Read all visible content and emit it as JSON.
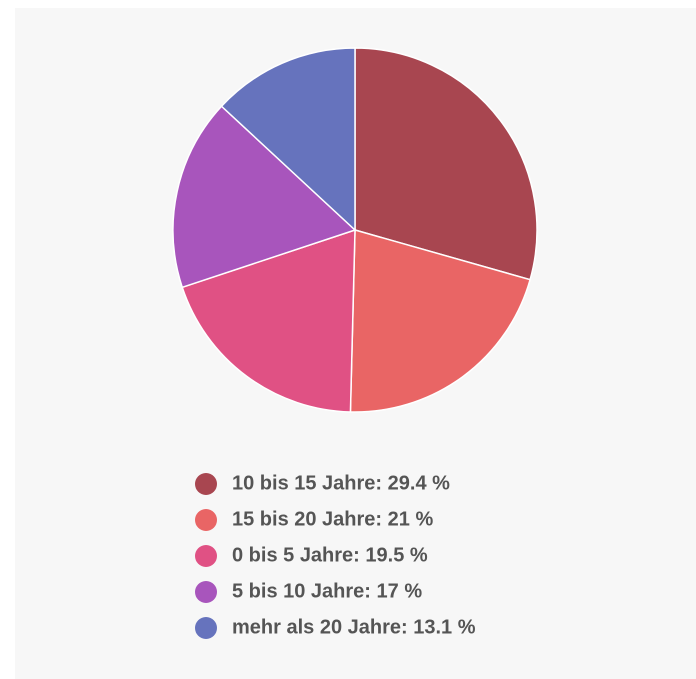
{
  "chart_data": {
    "type": "pie",
    "categories": [
      "10 bis 15 Jahre: 29.4 %",
      "15 bis 20 Jahre: 21 %",
      "0 bis 5 Jahre: 19.5 %",
      "5 bis 10 Jahre: 17 %",
      "mehr als 20 Jahre: 13.1 %"
    ],
    "values": [
      29.4,
      21,
      19.5,
      17,
      13.1
    ],
    "colors": [
      "#a84650",
      "#e96565",
      "#e05184",
      "#a855bc",
      "#6673bd"
    ],
    "legend": "bottom"
  }
}
